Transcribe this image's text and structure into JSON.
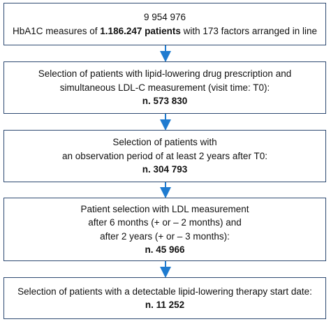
{
  "nodes": [
    {
      "lines": [
        [
          {
            "text": "9 954 976",
            "bold": false
          }
        ],
        [
          {
            "text": "HbA1C measures of ",
            "bold": false
          },
          {
            "text": "1.186.247 patients",
            "bold": true
          },
          {
            "text": " with 173 factors arranged in line",
            "bold": false
          }
        ]
      ]
    },
    {
      "lines": [
        [
          {
            "text": "Selection of patients with lipid-lowering drug prescription and",
            "bold": false
          }
        ],
        [
          {
            "text": "simultaneous LDL-C measurement (visit time: T0):",
            "bold": false
          }
        ],
        [
          {
            "text": "n. 573 830",
            "bold": true
          }
        ]
      ]
    },
    {
      "lines": [
        [
          {
            "text": "Selection of patients with",
            "bold": false
          }
        ],
        [
          {
            "text": "an observation period of at least 2 years after T0:",
            "bold": false
          }
        ],
        [
          {
            "text": "n. 304 793",
            "bold": true
          }
        ]
      ]
    },
    {
      "lines": [
        [
          {
            "text": "Patient selection with LDL measurement",
            "bold": false
          }
        ],
        [
          {
            "text": "after 6 months (+ or – 2 months) and",
            "bold": false
          }
        ],
        [
          {
            "text": "after 2 years (+ or – 3 months):",
            "bold": false
          }
        ],
        [
          {
            "text": "n. 45 966",
            "bold": true
          }
        ]
      ]
    },
    {
      "lines": [
        [
          {
            "text": "Selection of patients with a detectable lipid-lowering therapy start date:",
            "bold": false
          }
        ],
        [
          {
            "text": "n. 11 252",
            "bold": true
          }
        ]
      ]
    }
  ]
}
